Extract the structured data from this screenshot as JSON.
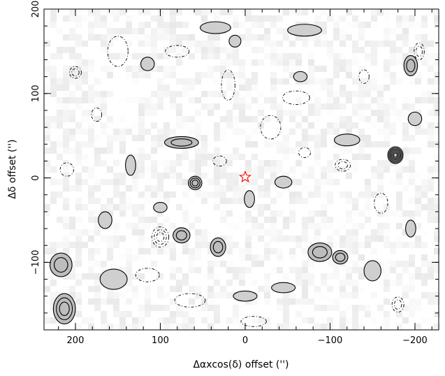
{
  "chart_data": {
    "type": "heatmap",
    "subtype": "contour-map",
    "xlabel": "Δαxcos(δ) offset ('')",
    "ylabel": "Δδ offset ('')",
    "xlim": [
      237,
      -228
    ],
    "ylim": [
      -180,
      200
    ],
    "x_ticks": [
      200,
      100,
      0,
      -100,
      -200
    ],
    "x_tick_labels": [
      "200",
      "100",
      "0",
      "−100",
      "−200"
    ],
    "y_ticks": [
      200,
      100,
      0,
      -100
    ],
    "y_tick_labels": [
      "200",
      "100",
      "0",
      "−100"
    ],
    "x_minor_step": 20,
    "y_minor_step": 20,
    "grid": false,
    "colors": {
      "grayscale_low": "#ffffff",
      "grayscale_high": "#b8b8b8",
      "contour_positive": "#000000",
      "contour_negative": "#000000",
      "marker": "#ff0000"
    },
    "marker": {
      "shape": "star",
      "x": 0,
      "y": 1
    },
    "sources": [
      {
        "name": "s1",
        "x": -177,
        "y": 27,
        "rx": 9,
        "ry": 10,
        "levels": 6,
        "sign": 1
      },
      {
        "name": "s2",
        "x": 59,
        "y": -6,
        "rx": 8,
        "ry": 8,
        "levels": 3,
        "sign": 1
      },
      {
        "name": "s3",
        "x": 213,
        "y": -155,
        "rx": 13,
        "ry": 18,
        "levels": 3,
        "sign": 1
      },
      {
        "name": "s4",
        "x": 32,
        "y": -82,
        "rx": 9,
        "ry": 11,
        "levels": 2,
        "sign": 1
      },
      {
        "name": "s5",
        "x": 75,
        "y": -68,
        "rx": 10,
        "ry": 9,
        "levels": 2,
        "sign": 1
      },
      {
        "name": "s6",
        "x": -88,
        "y": -88,
        "rx": 14,
        "ry": 11,
        "levels": 2,
        "sign": 1
      },
      {
        "name": "s7",
        "x": -112,
        "y": -94,
        "rx": 9,
        "ry": 8,
        "levels": 2,
        "sign": 1
      },
      {
        "name": "s8",
        "x": 75,
        "y": 42,
        "rx": 20,
        "ry": 7,
        "levels": 2,
        "sign": 1
      },
      {
        "name": "s9",
        "x": -195,
        "y": 133,
        "rx": 8,
        "ry": 12,
        "levels": 2,
        "sign": 1
      },
      {
        "name": "s10",
        "x": 217,
        "y": -103,
        "rx": 13,
        "ry": 14,
        "levels": 2,
        "sign": 1
      },
      {
        "name": "s11",
        "x": 155,
        "y": -120,
        "rx": 16,
        "ry": 12,
        "levels": 1,
        "sign": 1
      },
      {
        "name": "s12",
        "x": 35,
        "y": 178,
        "rx": 18,
        "ry": 7,
        "levels": 1,
        "sign": 1
      },
      {
        "name": "s13",
        "x": -70,
        "y": 175,
        "rx": 20,
        "ry": 7,
        "levels": 1,
        "sign": 1
      },
      {
        "name": "s14",
        "x": -200,
        "y": 70,
        "rx": 8,
        "ry": 8,
        "levels": 1,
        "sign": 1
      },
      {
        "name": "s15",
        "x": 165,
        "y": -50,
        "rx": 8,
        "ry": 10,
        "levels": 1,
        "sign": 1
      },
      {
        "name": "s16",
        "x": 135,
        "y": 15,
        "rx": 6,
        "ry": 12,
        "levels": 1,
        "sign": 1
      },
      {
        "name": "s17",
        "x": -5,
        "y": -25,
        "rx": 6,
        "ry": 10,
        "levels": 1,
        "sign": 1
      },
      {
        "name": "s18",
        "x": -45,
        "y": -5,
        "rx": 10,
        "ry": 7,
        "levels": 1,
        "sign": 1
      },
      {
        "name": "s19",
        "x": -120,
        "y": 45,
        "rx": 15,
        "ry": 7,
        "levels": 1,
        "sign": 1
      },
      {
        "name": "s20",
        "x": -45,
        "y": -130,
        "rx": 14,
        "ry": 6,
        "levels": 1,
        "sign": 1
      },
      {
        "name": "s21",
        "x": 0,
        "y": -140,
        "rx": 14,
        "ry": 6,
        "levels": 1,
        "sign": 1
      },
      {
        "name": "s22",
        "x": -150,
        "y": -110,
        "rx": 10,
        "ry": 12,
        "levels": 1,
        "sign": 1
      },
      {
        "name": "s23",
        "x": -195,
        "y": -60,
        "rx": 6,
        "ry": 10,
        "levels": 1,
        "sign": 1
      },
      {
        "name": "s24",
        "x": 100,
        "y": -35,
        "rx": 8,
        "ry": 6,
        "levels": 1,
        "sign": 1
      },
      {
        "name": "s25",
        "x": -65,
        "y": 120,
        "rx": 8,
        "ry": 6,
        "levels": 1,
        "sign": 1
      },
      {
        "name": "s26",
        "x": 115,
        "y": 135,
        "rx": 8,
        "ry": 8,
        "levels": 1,
        "sign": 1
      },
      {
        "name": "s27",
        "x": 12,
        "y": 162,
        "rx": 7,
        "ry": 7,
        "levels": 1,
        "sign": 1
      },
      {
        "name": "n1",
        "x": 200,
        "y": 125,
        "rx": 7,
        "ry": 7,
        "levels": 2,
        "sign": -1
      },
      {
        "name": "n2",
        "x": 100,
        "y": -70,
        "rx": 10,
        "ry": 12,
        "levels": 3,
        "sign": -1
      },
      {
        "name": "n3",
        "x": -115,
        "y": 15,
        "rx": 9,
        "ry": 7,
        "levels": 2,
        "sign": -1
      },
      {
        "name": "n4",
        "x": -205,
        "y": 150,
        "rx": 6,
        "ry": 10,
        "levels": 2,
        "sign": -1
      },
      {
        "name": "n5",
        "x": -180,
        "y": -150,
        "rx": 7,
        "ry": 9,
        "levels": 2,
        "sign": -1
      },
      {
        "name": "n6",
        "x": 150,
        "y": 150,
        "rx": 12,
        "ry": 18,
        "levels": 1,
        "sign": -1
      },
      {
        "name": "n7",
        "x": -60,
        "y": 95,
        "rx": 16,
        "ry": 8,
        "levels": 1,
        "sign": -1
      },
      {
        "name": "n8",
        "x": 20,
        "y": 110,
        "rx": 8,
        "ry": 18,
        "levels": 1,
        "sign": -1
      },
      {
        "name": "n9",
        "x": -10,
        "y": -170,
        "rx": 15,
        "ry": 6,
        "levels": 1,
        "sign": -1
      },
      {
        "name": "n10",
        "x": 65,
        "y": -145,
        "rx": 18,
        "ry": 8,
        "levels": 1,
        "sign": -1
      },
      {
        "name": "n11",
        "x": 175,
        "y": 75,
        "rx": 6,
        "ry": 8,
        "levels": 1,
        "sign": -1
      },
      {
        "name": "n12",
        "x": 80,
        "y": 150,
        "rx": 14,
        "ry": 7,
        "levels": 1,
        "sign": -1
      },
      {
        "name": "n13",
        "x": -140,
        "y": 120,
        "rx": 6,
        "ry": 8,
        "levels": 1,
        "sign": -1
      },
      {
        "name": "n14",
        "x": -30,
        "y": 60,
        "rx": 12,
        "ry": 14,
        "levels": 1,
        "sign": -1
      },
      {
        "name": "n15",
        "x": 30,
        "y": 20,
        "rx": 8,
        "ry": 6,
        "levels": 1,
        "sign": -1
      },
      {
        "name": "n16",
        "x": 210,
        "y": 10,
        "rx": 8,
        "ry": 8,
        "levels": 1,
        "sign": -1
      },
      {
        "name": "n17",
        "x": -160,
        "y": -30,
        "rx": 8,
        "ry": 12,
        "levels": 1,
        "sign": -1
      },
      {
        "name": "n18",
        "x": 115,
        "y": -115,
        "rx": 14,
        "ry": 8,
        "levels": 1,
        "sign": -1
      },
      {
        "name": "n19",
        "x": -70,
        "y": 30,
        "rx": 7,
        "ry": 6,
        "levels": 1,
        "sign": -1
      }
    ]
  }
}
